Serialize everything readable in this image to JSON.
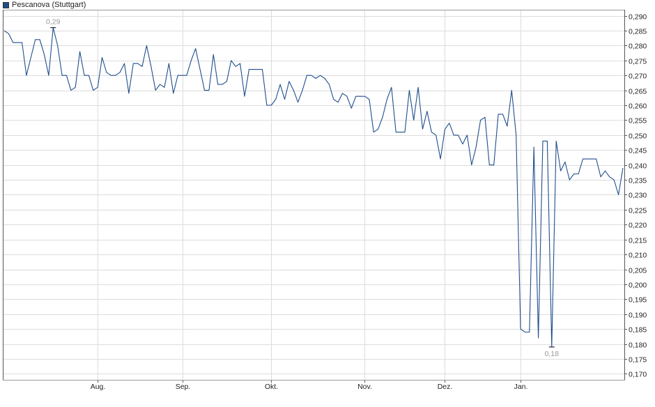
{
  "chart_data": {
    "type": "line",
    "title": "",
    "xlabel": "",
    "ylabel": "",
    "legend": {
      "placement": "top-left"
    },
    "grid": true,
    "ylim": [
      0.168,
      0.292
    ],
    "y_ticks": [
      "0,290",
      "0,285",
      "0,280",
      "0,275",
      "0,270",
      "0,265",
      "0,260",
      "0,255",
      "0,250",
      "0,245",
      "0,240",
      "0,235",
      "0,230",
      "0,225",
      "0,220",
      "0,215",
      "0,210",
      "0,205",
      "0,200",
      "0,195",
      "0,190",
      "0,185",
      "0,180",
      "0,175",
      "0,170"
    ],
    "y_tick_values": [
      0.29,
      0.285,
      0.28,
      0.275,
      0.27,
      0.265,
      0.26,
      0.255,
      0.25,
      0.245,
      0.24,
      0.235,
      0.23,
      0.225,
      0.22,
      0.215,
      0.21,
      0.205,
      0.2,
      0.195,
      0.19,
      0.185,
      0.18,
      0.175,
      0.17
    ],
    "x_month_labels": [
      "Aug.",
      "Sep.",
      "Okt.",
      "Nov.",
      "Dez.",
      "Jan."
    ],
    "x_month_positions": [
      21,
      40,
      60,
      81,
      99,
      116
    ],
    "series": [
      {
        "name": "Pescanova (Stuttgart)",
        "color": "#1f4e8c",
        "values": [
          0.285,
          0.284,
          0.281,
          0.281,
          0.281,
          0.27,
          0.276,
          0.282,
          0.282,
          0.277,
          0.27,
          0.286,
          0.28,
          0.27,
          0.27,
          0.265,
          0.266,
          0.278,
          0.27,
          0.27,
          0.265,
          0.266,
          0.276,
          0.271,
          0.27,
          0.27,
          0.271,
          0.274,
          0.264,
          0.274,
          0.274,
          0.273,
          0.28,
          0.273,
          0.265,
          0.267,
          0.266,
          0.274,
          0.264,
          0.27,
          0.27,
          0.27,
          0.275,
          0.279,
          0.272,
          0.265,
          0.265,
          0.277,
          0.267,
          0.267,
          0.268,
          0.275,
          0.273,
          0.274,
          0.263,
          0.272,
          0.272,
          0.272,
          0.272,
          0.26,
          0.26,
          0.262,
          0.267,
          0.262,
          0.268,
          0.265,
          0.261,
          0.265,
          0.27,
          0.27,
          0.269,
          0.27,
          0.269,
          0.267,
          0.262,
          0.261,
          0.264,
          0.263,
          0.259,
          0.263,
          0.263,
          0.263,
          0.262,
          0.251,
          0.252,
          0.256,
          0.262,
          0.266,
          0.251,
          0.251,
          0.251,
          0.265,
          0.255,
          0.266,
          0.252,
          0.258,
          0.251,
          0.25,
          0.242,
          0.252,
          0.254,
          0.25,
          0.25,
          0.247,
          0.25,
          0.24,
          0.246,
          0.255,
          0.256,
          0.24,
          0.24,
          0.257,
          0.257,
          0.253,
          0.265,
          0.25,
          0.185,
          0.184,
          0.184,
          0.246,
          0.182,
          0.248,
          0.248,
          0.179,
          0.248,
          0.238,
          0.241,
          0.235,
          0.237,
          0.237,
          0.242,
          0.242,
          0.242,
          0.242,
          0.236,
          0.238,
          0.236,
          0.235,
          0.23,
          0.239
        ]
      }
    ],
    "annotations": [
      {
        "label": "0,29",
        "index": 11,
        "value": 0.286,
        "position": "above"
      },
      {
        "label": "0,18",
        "index": 123,
        "value": 0.179,
        "position": "below"
      }
    ]
  }
}
